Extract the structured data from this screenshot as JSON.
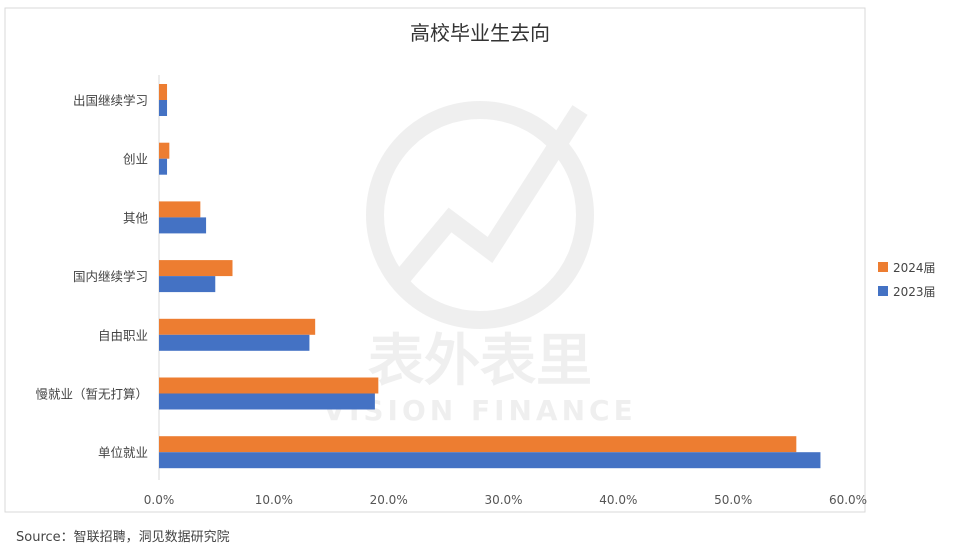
{
  "chart_data": {
    "type": "bar",
    "orientation": "horizontal",
    "title": "高校毕业生去向",
    "categories": [
      "出国继续学习",
      "创业",
      "其他",
      "国内继续学习",
      "自由职业",
      "慢就业（暂无打算）",
      "单位就业"
    ],
    "series": [
      {
        "name": "2024届",
        "color": "#ED7D31",
        "values": [
          0.7,
          0.9,
          3.6,
          6.4,
          13.6,
          19.1,
          55.5
        ]
      },
      {
        "name": "2023届",
        "color": "#4472C4",
        "values": [
          0.7,
          0.7,
          4.1,
          4.9,
          13.1,
          18.8,
          57.6
        ]
      }
    ],
    "xlim": [
      0,
      60
    ],
    "xticks": [
      "0.0%",
      "10.0%",
      "20.0%",
      "30.0%",
      "40.0%",
      "50.0%",
      "60.0%"
    ],
    "xlabel": "",
    "ylabel": "",
    "grid": false,
    "legend": "right",
    "legend_order": [
      "2024届",
      "2023届"
    ]
  },
  "watermark": {
    "text": "表外表里",
    "subtext": "VISION FINANCE"
  },
  "source": "Source：智联招聘，洞见数据研究院"
}
